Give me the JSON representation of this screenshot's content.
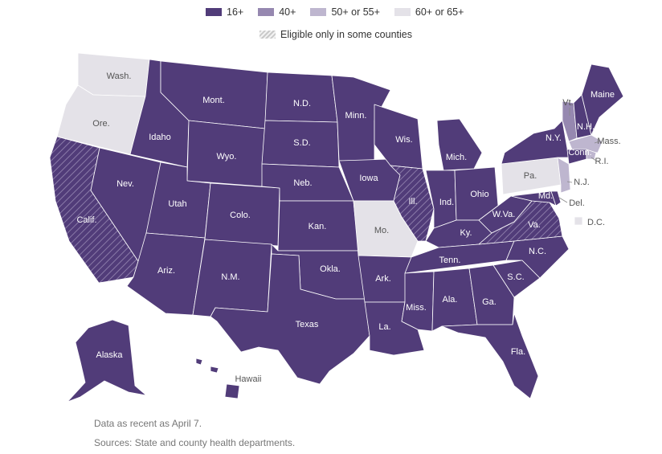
{
  "legend": {
    "items": [
      {
        "label": "16+",
        "color": "#513c79"
      },
      {
        "label": "40+",
        "color": "#9688b0"
      },
      {
        "label": "50+ or 55+",
        "color": "#beb6cf"
      },
      {
        "label": "60+ or 65+",
        "color": "#e4e2e8"
      }
    ],
    "hatch_label": "Eligible only in some counties"
  },
  "colors": {
    "c16": "#513c79",
    "c40": "#9688b0",
    "c50": "#beb6cf",
    "c60": "#e4e2e8",
    "border": "#ffffff",
    "hatch": "#8a7aa8"
  },
  "states": {
    "wa": {
      "label": "Wash.",
      "group": "60+ or 65+"
    },
    "or": {
      "label": "Ore.",
      "group": "60+ or 65+"
    },
    "ca": {
      "label": "Calif.",
      "group": "16+",
      "hatched": true
    },
    "nv": {
      "label": "Nev.",
      "group": "16+"
    },
    "id": {
      "label": "Idaho",
      "group": "16+"
    },
    "mt": {
      "label": "Mont.",
      "group": "16+"
    },
    "wy": {
      "label": "Wyo.",
      "group": "16+"
    },
    "ut": {
      "label": "Utah",
      "group": "16+"
    },
    "az": {
      "label": "Ariz.",
      "group": "16+"
    },
    "co": {
      "label": "Colo.",
      "group": "16+"
    },
    "nm": {
      "label": "N.M.",
      "group": "16+"
    },
    "nd": {
      "label": "N.D.",
      "group": "16+"
    },
    "sd": {
      "label": "S.D.",
      "group": "16+"
    },
    "ne": {
      "label": "Neb.",
      "group": "16+"
    },
    "ks": {
      "label": "Kan.",
      "group": "16+"
    },
    "ok": {
      "label": "Okla.",
      "group": "16+"
    },
    "tx": {
      "label": "Texas",
      "group": "16+"
    },
    "mn": {
      "label": "Minn.",
      "group": "16+"
    },
    "ia": {
      "label": "Iowa",
      "group": "16+"
    },
    "mo": {
      "label": "Mo.",
      "group": "60+ or 65+"
    },
    "ar": {
      "label": "Ark.",
      "group": "16+"
    },
    "la": {
      "label": "La.",
      "group": "16+"
    },
    "wi": {
      "label": "Wis.",
      "group": "16+"
    },
    "il": {
      "label": "Ill.",
      "group": "16+",
      "hatched": true
    },
    "mi": {
      "label": "Mich.",
      "group": "16+"
    },
    "in": {
      "label": "Ind.",
      "group": "16+"
    },
    "oh": {
      "label": "Ohio",
      "group": "16+"
    },
    "ky": {
      "label": "Ky.",
      "group": "16+"
    },
    "tn": {
      "label": "Tenn.",
      "group": "16+"
    },
    "ms": {
      "label": "Miss.",
      "group": "16+"
    },
    "al": {
      "label": "Ala.",
      "group": "16+"
    },
    "ga": {
      "label": "Ga.",
      "group": "16+"
    },
    "fl": {
      "label": "Fla.",
      "group": "16+"
    },
    "sc": {
      "label": "S.C.",
      "group": "16+"
    },
    "nc": {
      "label": "N.C.",
      "group": "16+"
    },
    "va": {
      "label": "Va.",
      "group": "16+",
      "hatched": true
    },
    "wv": {
      "label": "W.Va.",
      "group": "16+"
    },
    "md": {
      "label": "Md.",
      "group": "16+"
    },
    "de": {
      "label": "Del.",
      "group": "16+"
    },
    "nj": {
      "label": "N.J.",
      "group": "50+ or 55+"
    },
    "pa": {
      "label": "Pa.",
      "group": "60+ or 65+"
    },
    "ny": {
      "label": "N.Y.",
      "group": "16+"
    },
    "vt": {
      "label": "Vt.",
      "group": "40+"
    },
    "nh": {
      "label": "N.H.",
      "group": "16+"
    },
    "me": {
      "label": "Maine",
      "group": "16+"
    },
    "ma": {
      "label": "Mass.",
      "group": "50+ or 55+"
    },
    "ri": {
      "label": "R.I.",
      "group": "50+ or 55+"
    },
    "ct": {
      "label": "Conn.",
      "group": "16+"
    },
    "dc": {
      "label": "D.C.",
      "group": "60+ or 65+"
    },
    "ak": {
      "label": "Alaska",
      "group": "16+"
    },
    "hi": {
      "label": "Hawaii",
      "group": "16+"
    }
  },
  "notes": {
    "date": "Data as recent as April 7.",
    "sources": "Sources: State and county health departments."
  }
}
